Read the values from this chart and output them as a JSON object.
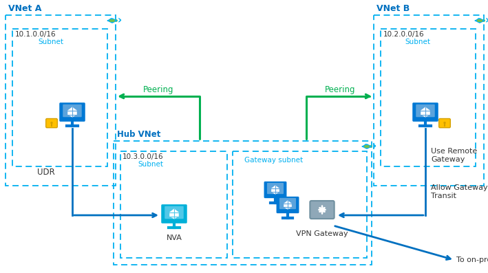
{
  "background_color": "#ffffff",
  "title_color": "#0070c0",
  "dashed_box_color": "#00b0f0",
  "green_color": "#00b050",
  "arrow_color": "#0070c0",
  "gold_color": "#ffc000",
  "cyan_color": "#00b0d8",
  "vnet_a_label": "VNet A",
  "vnet_b_label": "VNet B",
  "hub_vnet_label": "Hub VNet",
  "subnet_a_ip": "10.1.0.0/16",
  "subnet_b_ip": "10.2.0.0/16",
  "subnet_hub_ip": "10.3.0.0/16",
  "subnet_label": "Subnet",
  "gateway_subnet_label": "Gateway subnet",
  "nva_label": "NVA",
  "vpn_label": "VPN Gateway",
  "udr_label": "UDR",
  "peering_label": "Peering",
  "allow_gateway_label": "Allow Gateway\nTransit",
  "use_remote_label": "Use Remote\nGateway",
  "on_premises_label": "To on-premises",
  "dark_text": "#333333"
}
